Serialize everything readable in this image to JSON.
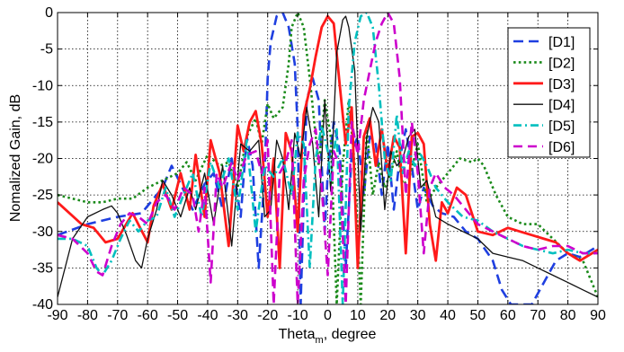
{
  "chart_data": {
    "type": "line",
    "xlabel_main": "Theta",
    "xlabel_sub": "m",
    "xlabel_tail": ", degree",
    "ylabel": "Nomalized Gain, dB",
    "xlim": [
      -90,
      90
    ],
    "ylim": [
      -40,
      0
    ],
    "xticks": [
      -90,
      -80,
      -70,
      -60,
      -50,
      -40,
      -30,
      -20,
      -10,
      0,
      10,
      20,
      30,
      40,
      50,
      60,
      70,
      80,
      90
    ],
    "yticks": [
      0,
      -5,
      -10,
      -15,
      -20,
      -25,
      -30,
      -35,
      -40
    ],
    "grid": true,
    "legend_position": "top-right",
    "series": [
      {
        "name": "[D1]",
        "color": "#1f3fe0",
        "dash": "11,6",
        "width": 2.6,
        "x": [
          -90,
          -80,
          -70,
          -62,
          -55,
          -52,
          -49,
          -45,
          -41,
          -38,
          -35,
          -32,
          -29,
          -27,
          -25,
          -23,
          -21,
          -20,
          -19,
          -17,
          -15,
          -13,
          -11,
          -10,
          -9,
          -7,
          -5,
          -3,
          -1,
          0,
          2,
          4,
          6,
          8,
          10,
          12,
          14,
          16,
          18,
          20,
          22,
          24,
          26,
          28,
          30,
          32,
          35,
          38,
          42,
          46,
          50,
          55,
          58,
          61,
          63,
          68,
          72,
          76,
          80,
          84,
          90
        ],
        "y": [
          -30.5,
          -29,
          -28,
          -27.5,
          -24,
          -21,
          -23.5,
          -27,
          -23.5,
          -22,
          -27,
          -20,
          -28,
          -17,
          -21,
          -35,
          -22,
          -9,
          -4,
          -0.5,
          0,
          -2,
          -7,
          -16,
          -40,
          -12,
          -9,
          -12,
          -30,
          -22,
          -15,
          -19,
          -35,
          -19,
          -17,
          -25,
          -17,
          -18,
          -25,
          -18,
          -27,
          -20,
          -16,
          -21,
          -27,
          -24,
          -26.5,
          -27.5,
          -28,
          -30,
          -31,
          -34,
          -38,
          -40,
          -40,
          -40,
          -37,
          -34,
          -33,
          -33.5,
          -32
        ]
      },
      {
        "name": "[D2]",
        "color": "#1a8a1a",
        "dash": "2.6,3.2",
        "width": 2.6,
        "x": [
          -90,
          -85,
          -80,
          -75,
          -70,
          -65,
          -60,
          -55,
          -50,
          -47,
          -44,
          -40,
          -36,
          -33,
          -30,
          -27,
          -24,
          -22,
          -20,
          -18,
          -15,
          -13,
          -12,
          -10,
          -8,
          -6,
          -3,
          -1,
          1,
          3,
          5,
          7,
          9,
          11,
          13,
          15,
          17,
          19,
          21,
          23,
          25,
          27,
          30,
          33,
          36,
          40,
          44,
          48,
          50,
          52,
          56,
          60,
          65,
          70,
          75,
          80,
          85,
          90
        ],
        "y": [
          -25,
          -25.5,
          -26,
          -26,
          -25.5,
          -25.5,
          -24,
          -23,
          -22,
          -20.5,
          -23,
          -19.5,
          -21,
          -20.5,
          -24,
          -17,
          -14.5,
          -18,
          -12.5,
          -14.5,
          -13,
          -7,
          -2,
          0,
          -2,
          -9,
          -21,
          -12,
          -17,
          -40,
          -21,
          -12,
          -21,
          -40,
          -16,
          -25,
          -20.5,
          -24,
          -22,
          -19,
          -23.5,
          -23,
          -18,
          -26,
          -24,
          -22,
          -20,
          -20.5,
          -20,
          -21,
          -25,
          -28,
          -29,
          -29,
          -31,
          -33,
          -34,
          -39
        ]
      },
      {
        "name": "[D3]",
        "color": "#ff1a1a",
        "dash": "",
        "width": 2.8,
        "x": [
          -90,
          -82,
          -78,
          -74,
          -70,
          -65,
          -60,
          -58,
          -55,
          -52,
          -49,
          -46,
          -44,
          -41,
          -39,
          -36,
          -33,
          -30,
          -28,
          -26,
          -24,
          -22,
          -20,
          -18,
          -16,
          -14,
          -12,
          -10,
          -8,
          -6,
          -4,
          -2,
          0,
          2,
          4,
          6,
          8,
          10,
          12,
          14,
          16,
          18,
          20,
          22,
          24,
          26,
          28,
          30,
          32,
          34,
          36,
          38,
          40,
          43,
          46,
          50,
          55,
          60,
          64,
          68,
          72,
          76,
          80,
          84,
          90
        ],
        "y": [
          -26,
          -29,
          -29.5,
          -31.5,
          -31,
          -27.5,
          -31.5,
          -26.5,
          -23.5,
          -27,
          -22,
          -27,
          -19.5,
          -28,
          -17.5,
          -22,
          -32,
          -15.5,
          -19,
          -15,
          -13.5,
          -18,
          -28,
          -20,
          -35,
          -16.5,
          -19,
          -30,
          -14,
          -10.5,
          -6,
          -2,
          -0.5,
          -1.5,
          -10,
          -18,
          -13,
          -35,
          -17,
          -14.5,
          -21,
          -16,
          -22,
          -17,
          -18.5,
          -33,
          -17,
          -16.5,
          -18,
          -29,
          -34,
          -26,
          -27.5,
          -24,
          -25,
          -30,
          -30.5,
          -29.5,
          -30,
          -30.5,
          -31,
          -31.5,
          -33,
          -34,
          -32.5
        ]
      },
      {
        "name": "[D4]",
        "color": "#111111",
        "dash": "",
        "width": 1.3,
        "x": [
          -90,
          -85,
          -80,
          -75,
          -72,
          -70,
          -67,
          -64,
          -62,
          -60,
          -57,
          -55,
          -52,
          -49,
          -46,
          -44,
          -41,
          -38,
          -35,
          -32,
          -29,
          -26,
          -23,
          -21,
          -19,
          -17,
          -15,
          -13,
          -11,
          -9,
          -7,
          -5,
          -3,
          -1,
          1,
          3,
          5,
          6,
          7,
          9,
          11,
          13,
          15,
          17,
          19,
          21,
          23,
          25,
          27,
          29,
          31,
          33,
          36,
          40,
          45,
          50,
          55,
          60,
          65,
          70,
          75,
          80,
          85,
          90
        ],
        "y": [
          -39,
          -31,
          -28,
          -27,
          -26.5,
          -27.5,
          -30.5,
          -34,
          -35,
          -31,
          -27,
          -23,
          -25,
          -28,
          -24,
          -27,
          -22,
          -29,
          -21,
          -32,
          -18,
          -19,
          -17.5,
          -28,
          -27,
          -17.5,
          -20,
          -27,
          -16.5,
          -20,
          -13,
          -18,
          -28,
          -12,
          -24.5,
          -5.5,
          -1,
          -0.5,
          -2,
          -8,
          -30,
          -17,
          -13,
          -15,
          -27,
          -19,
          -21,
          -20,
          -17,
          -16,
          -24,
          -23,
          -28,
          -29,
          -30,
          -31,
          -33,
          -33.5,
          -34,
          -35,
          -36,
          -37,
          -38,
          -39
        ]
      },
      {
        "name": "[D5]",
        "color": "#00bfbf",
        "dash": "9,4,2,4",
        "width": 2.6,
        "x": [
          -90,
          -85,
          -80,
          -77,
          -75,
          -72,
          -69,
          -66,
          -63,
          -60,
          -57,
          -54,
          -51,
          -48,
          -45,
          -42,
          -39,
          -36,
          -33,
          -30,
          -27,
          -24,
          -21,
          -18,
          -15,
          -12,
          -10,
          -8,
          -6,
          -4,
          -2,
          0,
          1,
          3,
          5,
          7,
          9,
          11,
          13,
          15,
          17,
          19,
          21,
          23,
          25,
          27,
          29,
          31,
          33,
          36,
          40,
          45,
          50,
          55,
          60,
          65,
          70,
          75,
          80,
          85,
          90
        ],
        "y": [
          -31,
          -31,
          -32,
          -35,
          -36,
          -34,
          -31,
          -28.5,
          -30,
          -28.5,
          -28,
          -24,
          -28,
          -25,
          -22,
          -28,
          -20.5,
          -24,
          -20,
          -27,
          -17.5,
          -30,
          -21,
          -22.5,
          -20,
          -25,
          -16.5,
          -18,
          -35,
          -20,
          -15.5,
          -19,
          -23,
          -16,
          -40,
          -13,
          -4,
          -0.5,
          0,
          -2,
          -10,
          -20,
          -23,
          -14,
          -22,
          -19,
          -21,
          -19.5,
          -21,
          -24,
          -26,
          -28,
          -28.5,
          -30,
          -31,
          -32,
          -32.5,
          -33,
          -32.5,
          -33,
          -33
        ]
      },
      {
        "name": "[D6]",
        "color": "#cc00cc",
        "dash": "10,6",
        "width": 2.6,
        "x": [
          -90,
          -85,
          -80,
          -77,
          -75,
          -72,
          -69,
          -66,
          -63,
          -60,
          -57,
          -54,
          -51,
          -48,
          -45,
          -43,
          -41,
          -39,
          -37,
          -35,
          -32,
          -30,
          -27,
          -24,
          -22,
          -20,
          -18,
          -16,
          -14,
          -12,
          -10,
          -8,
          -6,
          -4,
          -2,
          0,
          2,
          4,
          6,
          8,
          10,
          12,
          14,
          16,
          18,
          20,
          22,
          24,
          26,
          28,
          30,
          32,
          34,
          36,
          39,
          42,
          46,
          50,
          55,
          60,
          65,
          70,
          75,
          80,
          85,
          90
        ],
        "y": [
          -30.5,
          -31,
          -33,
          -35.5,
          -36,
          -32,
          -29,
          -27.5,
          -28,
          -29,
          -26,
          -25,
          -27,
          -24,
          -25,
          -30,
          -24,
          -37,
          -22,
          -24,
          -20.5,
          -23,
          -19.5,
          -19,
          -22,
          -17.5,
          -40,
          -22,
          -20.5,
          -17.5,
          -40,
          -23,
          -18,
          -16,
          -24,
          -36,
          -19,
          -21,
          -40,
          -15,
          -19.5,
          -12,
          -8,
          -4,
          -1.5,
          0,
          -1.5,
          -9,
          -25,
          -15,
          -22,
          -33,
          -24,
          -22,
          -24,
          -25,
          -27,
          -29,
          -30,
          -31,
          -32,
          -32.5,
          -32,
          -32,
          -33,
          -33
        ]
      }
    ]
  }
}
